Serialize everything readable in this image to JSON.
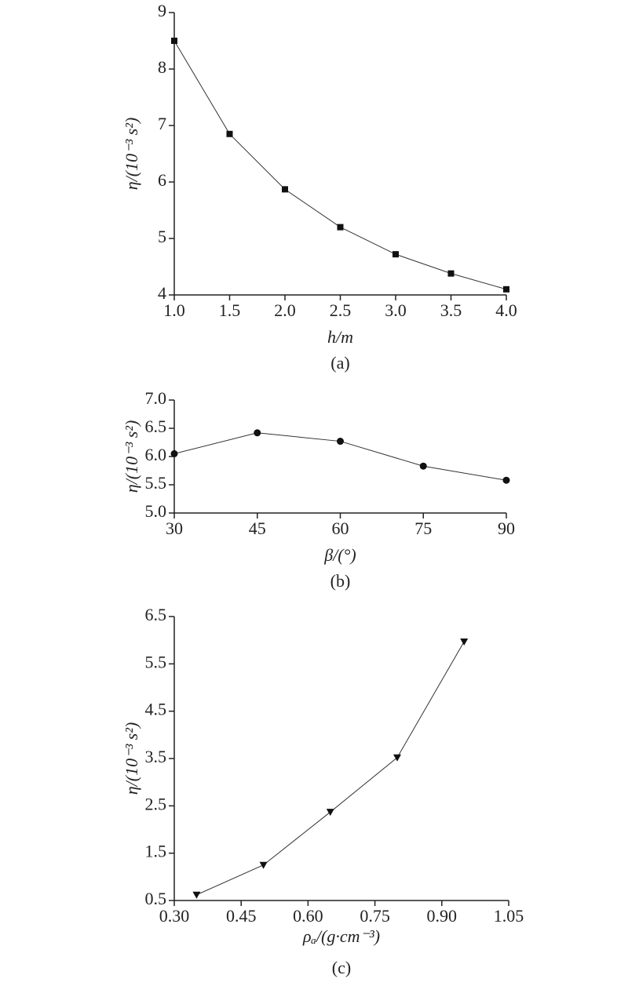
{
  "chart_data": [
    {
      "type": "line",
      "marker": "square",
      "color": "#333333",
      "x_label": "h/m",
      "y_label": "η/(10⁻³ s²)",
      "caption": "(a)",
      "x": [
        1,
        1.5,
        2,
        2.5,
        3,
        3.5,
        4
      ],
      "values": [
        8.5,
        6.85,
        5.87,
        5.2,
        4.72,
        4.38,
        4.1
      ],
      "xlim": [
        1,
        4
      ],
      "xticks": [
        {
          "value": 1,
          "label": "1.0"
        },
        {
          "value": 1.5,
          "label": "1.5"
        },
        {
          "value": 2,
          "label": "2.0"
        },
        {
          "value": 2.5,
          "label": "2.5"
        },
        {
          "value": 3,
          "label": "3.0"
        },
        {
          "value": 3.5,
          "label": "3.5"
        },
        {
          "value": 4,
          "label": "4.0"
        }
      ],
      "ylim": [
        4,
        9
      ],
      "yticks": [
        4,
        5,
        6,
        7,
        8,
        9
      ]
    },
    {
      "type": "line",
      "marker": "circle",
      "color": "#333333",
      "x_label": "β/(°)",
      "y_label": "η/(10⁻³ s²)",
      "caption": "(b)",
      "x": [
        30,
        45,
        60,
        75,
        90
      ],
      "values": [
        6.05,
        6.42,
        6.27,
        5.83,
        5.58
      ],
      "xlim": [
        30,
        90
      ],
      "xticks": [
        30,
        45,
        60,
        75,
        90
      ],
      "ylim": [
        5,
        7
      ],
      "yticks": [
        {
          "value": 5,
          "label": "5.0"
        },
        5.5,
        {
          "value": 6,
          "label": "6.0"
        },
        6.5,
        {
          "value": 7,
          "label": "7.0"
        }
      ]
    },
    {
      "type": "line",
      "marker": "triangle-down",
      "color": "#333333",
      "x_label": "ρₐ/(g·cm⁻³)",
      "y_label": "η/(10⁻³ s²)",
      "caption": "(c)",
      "x": [
        0.35,
        0.5,
        0.65,
        0.8,
        0.95
      ],
      "values": [
        0.62,
        1.25,
        2.37,
        3.52,
        5.97
      ],
      "xlim": [
        0.3,
        1.05
      ],
      "xticks": [
        {
          "value": 0.3,
          "label": "0.30"
        },
        {
          "value": 0.45,
          "label": "0.45"
        },
        {
          "value": 0.6,
          "label": "0.60"
        },
        {
          "value": 0.75,
          "label": "0.75"
        },
        {
          "value": 0.9,
          "label": "0.90"
        },
        {
          "value": 1.05,
          "label": "1.05"
        }
      ],
      "ylim": [
        0.5,
        6.5
      ],
      "yticks": [
        0.5,
        1.5,
        2.5,
        3.5,
        4.5,
        5.5,
        6.5
      ]
    }
  ]
}
